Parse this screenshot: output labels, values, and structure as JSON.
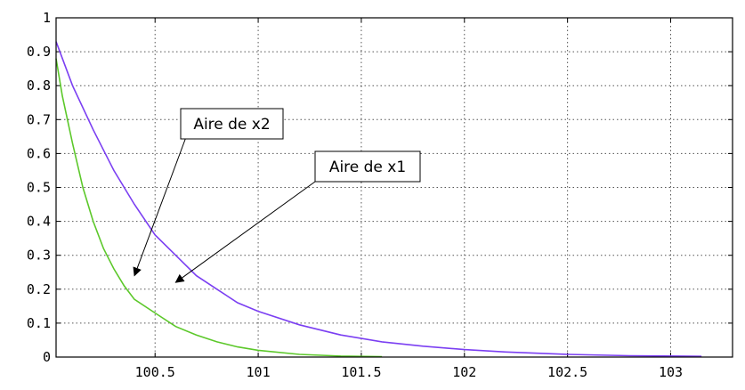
{
  "chart_data": {
    "type": "line",
    "title": "",
    "xlabel": "",
    "ylabel": "",
    "xlim": [
      100.02,
      103.3
    ],
    "ylim": [
      0,
      1
    ],
    "grid": true,
    "x_ticks": [
      "100.5",
      "101",
      "101.5",
      "102",
      "102.5",
      "103"
    ],
    "y_ticks": [
      "0",
      "0.1",
      "0.2",
      "0.3",
      "0.4",
      "0.5",
      "0.6",
      "0.7",
      "0.8",
      "0.9",
      "1"
    ],
    "series": [
      {
        "color": "#7b3ff2",
        "x": [
          100.02,
          100.1,
          100.2,
          100.3,
          100.4,
          100.5,
          100.6,
          100.7,
          100.8,
          100.9,
          101.0,
          101.2,
          101.4,
          101.6,
          101.8,
          102.0,
          102.2,
          102.5,
          102.8,
          103.15
        ],
        "y": [
          0.93,
          0.8,
          0.67,
          0.55,
          0.45,
          0.36,
          0.3,
          0.24,
          0.2,
          0.16,
          0.135,
          0.095,
          0.065,
          0.045,
          0.032,
          0.022,
          0.015,
          0.008,
          0.004,
          0.002
        ]
      },
      {
        "color": "#5cc82a",
        "x": [
          100.02,
          100.05,
          100.1,
          100.15,
          100.2,
          100.25,
          100.3,
          100.35,
          100.4,
          100.5,
          100.6,
          100.7,
          100.8,
          100.9,
          101.0,
          101.2,
          101.4,
          101.6
        ],
        "y": [
          0.88,
          0.77,
          0.63,
          0.5,
          0.4,
          0.32,
          0.26,
          0.21,
          0.17,
          0.13,
          0.09,
          0.065,
          0.045,
          0.03,
          0.02,
          0.008,
          0.003,
          0.001
        ]
      }
    ],
    "annotations": [
      {
        "text": "Aire de x2",
        "arrow_to": [
          100.4,
          0.24
        ]
      },
      {
        "text": "Aire de x1",
        "arrow_to": [
          100.6,
          0.22
        ]
      }
    ]
  }
}
